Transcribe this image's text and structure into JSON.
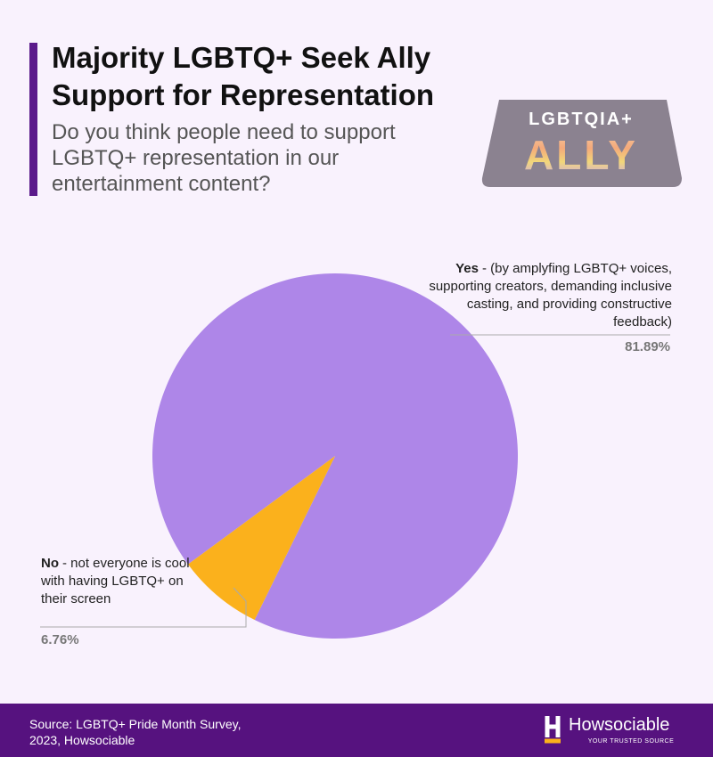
{
  "chart_data": {
    "type": "pie",
    "title": "Majority LGBTQ+ Seek Ally Support for Representation",
    "subtitle": "Do you think people need to support LGBTQ+ representation in our entertainment content?",
    "categories": [
      "Yes",
      "No"
    ],
    "descriptions": [
      "- (by amplyfing LGBTQ+ voices, supporting creators, demanding inclusive casting, and providing constructive feedback)",
      "- not everyone is cool with having LGBTQ+ on their screen"
    ],
    "values": [
      81.89,
      6.76
    ],
    "value_labels": [
      "81.89%",
      "6.76%"
    ],
    "colors": [
      "#ae86e8",
      "#fbb11c"
    ]
  },
  "badge": {
    "top": "LGBTQIA+",
    "bottom": "ALLY"
  },
  "footer": {
    "source": "Source: LGBTQ+ Pride Month Survey, 2023, Howsociable",
    "brand": "Howsociable",
    "tagline": "YOUR TRUSTED SOURCE"
  }
}
